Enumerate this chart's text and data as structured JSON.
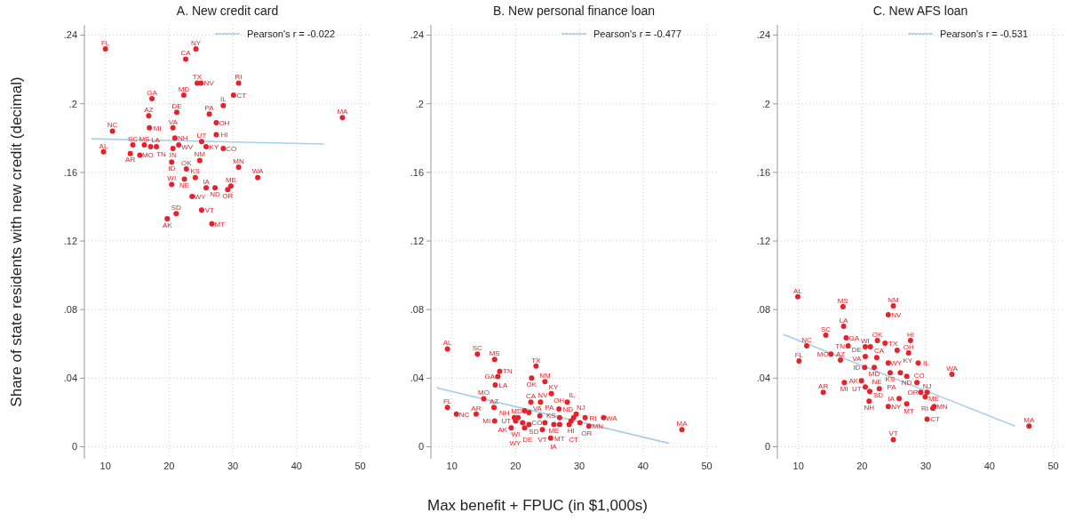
{
  "chart_data": [
    {
      "type": "scatter",
      "title": "A. New credit card",
      "ylabel": "Share of state residents with new credit (decimal)",
      "xlim": [
        6.7,
        51.6
      ],
      "ylim": [
        -0.007,
        0.246
      ],
      "xticks": [
        10,
        20,
        30,
        40,
        50
      ],
      "yticks": [
        {
          "value": 0,
          "label": "0"
        },
        {
          "value": 0.04,
          "label": ".04"
        },
        {
          "value": 0.08,
          "label": ".08"
        },
        {
          "value": 0.12,
          "label": ".12"
        },
        {
          "value": 0.16,
          "label": ".16"
        },
        {
          "value": 0.2,
          "label": ".2"
        },
        {
          "value": 0.24,
          "label": ".24"
        }
      ],
      "grid": true,
      "legend": "top right",
      "series": [
        {
          "type": "scatter",
          "marker": "circle",
          "color": "#e8202a",
          "value_labels": [
            "FL",
            "NY",
            "CA",
            "TX",
            "NV",
            "RI",
            "MD",
            "CT",
            "GA",
            "IL",
            "DE",
            "AZ",
            "PA",
            "OH",
            "MA",
            "NC",
            "MI",
            "VA",
            "HI",
            "NH",
            "SC",
            "MS",
            "LA",
            "TN",
            "WV",
            "IN",
            "UT",
            "KY",
            "CO",
            "AL",
            "AR",
            "MO",
            "ID",
            "NM",
            "OK",
            "MN",
            "WA",
            "KS",
            "NE",
            "WI",
            "IA",
            "ND",
            "OR",
            "ME",
            "WY",
            "VT",
            "SD",
            "AK",
            "MT"
          ],
          "x": [
            10,
            24.2,
            22.6,
            24.4,
            25,
            30.9,
            22.3,
            30.1,
            17.3,
            28.5,
            21.2,
            16.8,
            26.3,
            27.4,
            47.2,
            11.1,
            16.9,
            20.6,
            27.4,
            20.9,
            14.3,
            16.1,
            17.1,
            18,
            21.5,
            20.6,
            25.1,
            25.8,
            28.5,
            9.7,
            13.9,
            15.4,
            20.4,
            24.8,
            22.7,
            30.9,
            33.9,
            24.1,
            22.4,
            20.4,
            25.8,
            27.2,
            29.2,
            29.7,
            23.6,
            25.1,
            21.1,
            19.7,
            26.7
          ],
          "values": [
            0.232,
            0.232,
            0.226,
            0.212,
            0.212,
            0.212,
            0.205,
            0.205,
            0.203,
            0.199,
            0.195,
            0.193,
            0.194,
            0.189,
            0.192,
            0.184,
            0.186,
            0.186,
            0.182,
            0.18,
            0.176,
            0.176,
            0.175,
            0.175,
            0.176,
            0.174,
            0.178,
            0.175,
            0.174,
            0.172,
            0.171,
            0.17,
            0.166,
            0.167,
            0.162,
            0.163,
            0.157,
            0.157,
            0.156,
            0.153,
            0.151,
            0.151,
            0.15,
            0.152,
            0.146,
            0.138,
            0.136,
            0.133,
            0.13
          ]
        },
        {
          "type": "line",
          "name": "Pearson's r = -0.022",
          "color": "#a6cfe8",
          "x": [
            7.8,
            44.3
          ],
          "values": [
            0.1796,
            0.1765
          ]
        }
      ]
    },
    {
      "type": "scatter",
      "title": "B. New personal finance loan",
      "xlabel": "Max benefit + FPUC (in $1,000s)",
      "xlim": [
        6.7,
        51.6
      ],
      "ylim": [
        -0.007,
        0.246
      ],
      "xticks": [
        10,
        20,
        30,
        40,
        50
      ],
      "yticks": [
        {
          "value": 0,
          "label": "0"
        },
        {
          "value": 0.04,
          "label": ".04"
        },
        {
          "value": 0.08,
          "label": ".08"
        },
        {
          "value": 0.12,
          "label": ".12"
        },
        {
          "value": 0.16,
          "label": ".16"
        },
        {
          "value": 0.2,
          "label": ".2"
        },
        {
          "value": 0.24,
          "label": ".24"
        }
      ],
      "grid": true,
      "legend": "top right",
      "series": [
        {
          "type": "scatter",
          "marker": "circle",
          "color": "#e8202a",
          "value_labels": [
            "AL",
            "SC",
            "MS",
            "TX",
            "TN",
            "GA",
            "OK",
            "NM",
            "LA",
            "KY",
            "MO",
            "AZ",
            "CA",
            "NV",
            "IL",
            "OH",
            "FL",
            "NC",
            "AR",
            "MI",
            "NJ",
            "RI",
            "WA",
            "MA",
            "MD",
            "UT",
            "WI",
            "AK",
            "DE",
            "SD",
            "VA",
            "PA",
            "CO",
            "ME",
            "VT",
            "IA",
            "MT",
            "HI",
            "OR",
            "MN",
            "CT",
            "NH",
            "WY",
            "ND",
            "KS"
          ],
          "x": [
            9.3,
            14,
            16.7,
            23.2,
            17.5,
            17.2,
            22.5,
            24.6,
            16.8,
            25.6,
            15,
            16.6,
            22.4,
            23.9,
            28.1,
            26.8,
            9.3,
            10.7,
            13.8,
            16.7,
            29.5,
            30.9,
            33.8,
            46.1,
            21.4,
            20.4,
            20,
            19.3,
            21.1,
            22.1,
            22.1,
            23.8,
            24.6,
            26,
            24.2,
            25.5,
            26.9,
            28.7,
            30.1,
            31.5,
            28.4,
            19.8,
            21.4,
            29.1,
            26.9
          ],
          "values": [
            0.057,
            0.054,
            0.051,
            0.047,
            0.044,
            0.041,
            0.04,
            0.038,
            0.036,
            0.031,
            0.028,
            0.023,
            0.026,
            0.026,
            0.026,
            0.022,
            0.023,
            0.019,
            0.019,
            0.015,
            0.019,
            0.017,
            0.017,
            0.01,
            0.021,
            0.017,
            0.015,
            0.011,
            0.014,
            0.013,
            0.02,
            0.018,
            0.014,
            0.013,
            0.01,
            0.005,
            0.013,
            0.015,
            0.014,
            0.012,
            0.013,
            0.017,
            0.011,
            0.017,
            0.017
          ]
        },
        {
          "type": "line",
          "name": "Pearson's r = -0.477",
          "color": "#a6cfe8",
          "x": [
            7.6,
            44.1
          ],
          "values": [
            0.0344,
            0.002
          ]
        }
      ]
    },
    {
      "type": "scatter",
      "title": "C. New AFS loan",
      "xlim": [
        6.7,
        51.6
      ],
      "ylim": [
        -0.007,
        0.246
      ],
      "xticks": [
        10,
        20,
        30,
        40,
        50
      ],
      "yticks": [
        {
          "value": 0,
          "label": "0"
        },
        {
          "value": 0.04,
          "label": ".04"
        },
        {
          "value": 0.08,
          "label": ".08"
        },
        {
          "value": 0.12,
          "label": ".12"
        },
        {
          "value": 0.16,
          "label": ".16"
        },
        {
          "value": 0.2,
          "label": ".2"
        },
        {
          "value": 0.24,
          "label": ".24"
        }
      ],
      "grid": true,
      "legend": "top right",
      "series": [
        {
          "type": "scatter",
          "marker": "circle",
          "color": "#e8202a",
          "value_labels": [
            "AL",
            "MS",
            "NM",
            "NV",
            "LA",
            "SC",
            "GA",
            "HI",
            "TN",
            "NC",
            "WI",
            "DE",
            "OK",
            "TX",
            "KY",
            "OH",
            "MO",
            "AZ",
            "FL",
            "VA",
            "CA",
            "IL",
            "ID",
            "MD",
            "WY",
            "KS",
            "PA",
            "ND",
            "CO",
            "WA",
            "MI",
            "AK",
            "UT",
            "NE",
            "SD",
            "AR",
            "NH",
            "IA",
            "NY",
            "MT",
            "OR",
            "NJ",
            "ME",
            "MN",
            "RI",
            "CT",
            "MA",
            "VT"
          ],
          "x": [
            9.9,
            17,
            24.9,
            24.1,
            17.1,
            14.3,
            17.5,
            27.6,
            17.8,
            11.3,
            20.5,
            21.3,
            22.4,
            23.6,
            25.5,
            27.3,
            15.1,
            16.6,
            10.1,
            20.5,
            22.3,
            28.8,
            20.4,
            21.9,
            24.1,
            24.4,
            26,
            27,
            28.6,
            34.1,
            17.2,
            19.9,
            20.5,
            22.7,
            21.2,
            13.9,
            21.1,
            25.8,
            24.1,
            27,
            29.2,
            30.2,
            29.9,
            31.3,
            31.1,
            30.2,
            46.2,
            24.9
          ],
          "values": [
            0.0875,
            0.0817,
            0.0822,
            0.077,
            0.0703,
            0.065,
            0.0635,
            0.062,
            0.0588,
            0.0588,
            0.0583,
            0.0583,
            0.062,
            0.0604,
            0.0562,
            0.0547,
            0.0541,
            0.0505,
            0.05,
            0.0526,
            0.052,
            0.0489,
            0.0463,
            0.0463,
            0.0489,
            0.0432,
            0.0432,
            0.0411,
            0.0375,
            0.0422,
            0.0375,
            0.0385,
            0.0349,
            0.0338,
            0.0323,
            0.0318,
            0.0266,
            0.0281,
            0.0234,
            0.025,
            0.0318,
            0.0318,
            0.0292,
            0.0234,
            0.0224,
            0.0161,
            0.012,
            0.0042
          ]
        },
        {
          "type": "line",
          "name": "Pearson's r = -0.531",
          "color": "#a6cfe8",
          "x": [
            7.6,
            44
          ],
          "values": [
            0.0656,
            0.012
          ]
        }
      ]
    }
  ]
}
